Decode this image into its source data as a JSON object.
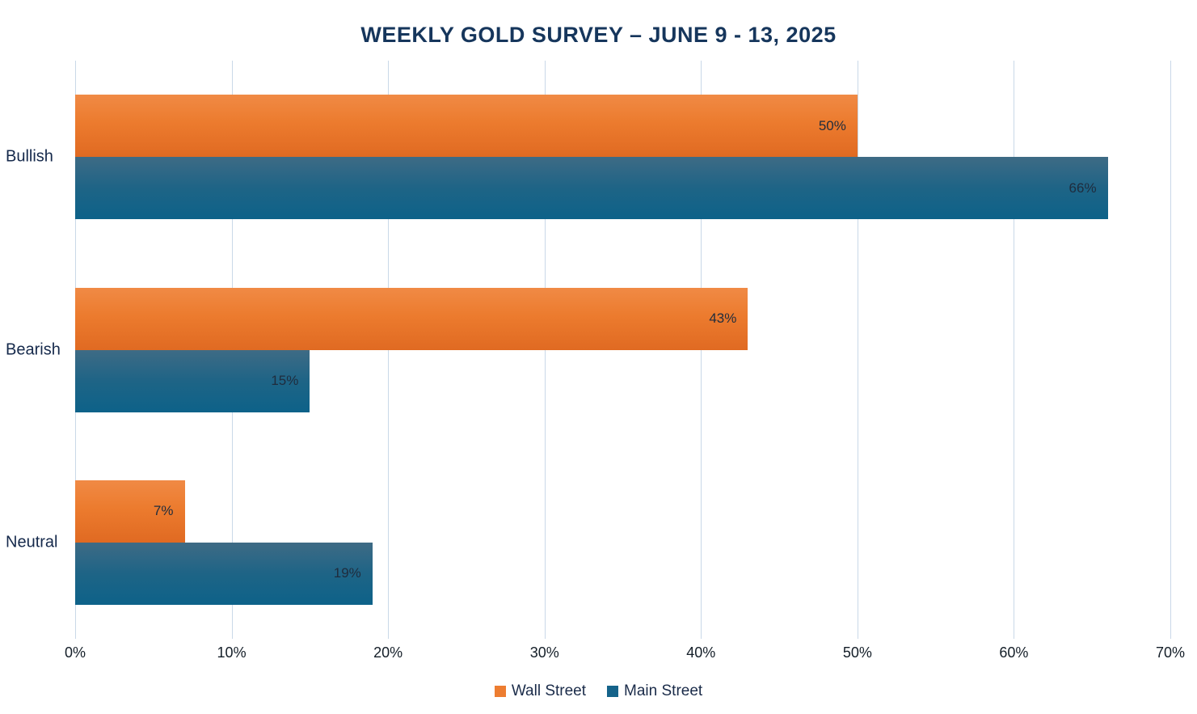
{
  "chart_data": {
    "type": "bar",
    "orientation": "horizontal",
    "title": "WEEKLY GOLD SURVEY – JUNE 9 - 13, 2025",
    "categories": [
      "Bullish",
      "Bearish",
      "Neutral"
    ],
    "series": [
      {
        "name": "Wall Street",
        "values": [
          50,
          43,
          7
        ],
        "color": "#ED7D31"
      },
      {
        "name": "Main Street",
        "values": [
          66,
          15,
          19
        ],
        "color": "#15638A"
      }
    ],
    "x_ticks": [
      "0%",
      "10%",
      "20%",
      "30%",
      "40%",
      "50%",
      "60%",
      "70%"
    ],
    "xlim": [
      0,
      70
    ],
    "grid": true,
    "gridline_color": "#C9D8E8",
    "legend_position": "bottom",
    "data_label_format": "percent",
    "title_color": "#16365C"
  }
}
